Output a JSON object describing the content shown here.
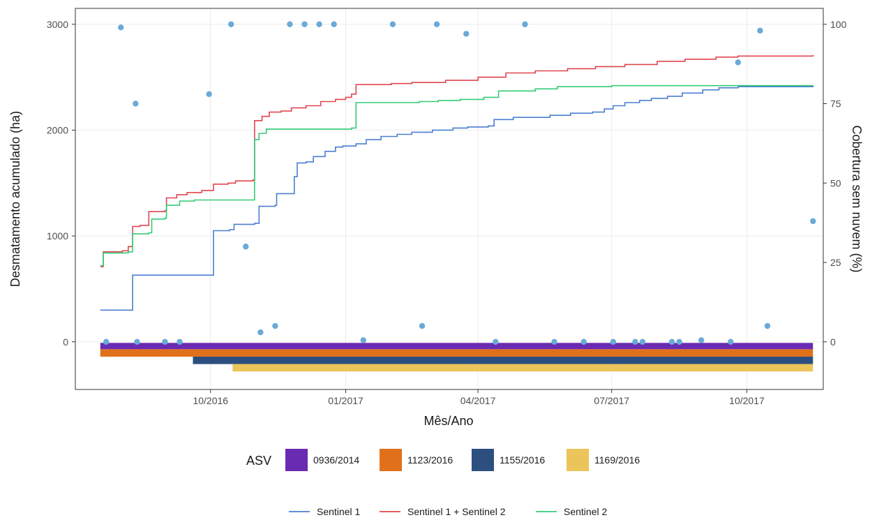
{
  "chart_data": {
    "type": "line",
    "title": "",
    "xlabel": "Mês/Ano",
    "ylabel": "Desmatamento acumulado (ha)",
    "y2label": "Cobertura sem nuvem (%)",
    "x_type": "date",
    "xlim": [
      "2016-07-01",
      "2017-11-22"
    ],
    "ylim": [
      -450,
      3150
    ],
    "y2lim": [
      -15,
      105
    ],
    "x_ticks": [
      {
        "date": "2016-10-01",
        "label": "10/2016"
      },
      {
        "date": "2017-01-01",
        "label": "01/2017"
      },
      {
        "date": "2017-04-01",
        "label": "04/2017"
      },
      {
        "date": "2017-07-01",
        "label": "07/2017"
      },
      {
        "date": "2017-10-01",
        "label": "10/2017"
      }
    ],
    "y_ticks": [
      0,
      1000,
      2000,
      3000
    ],
    "y2_ticks": [
      0,
      25,
      50,
      75,
      100
    ],
    "grid": true,
    "series": [
      {
        "name": "Sentinel 1",
        "color": "#4a7fd0",
        "points": [
          [
            "2016-07-18",
            300
          ],
          [
            "2016-08-03",
            300
          ],
          [
            "2016-08-09",
            630
          ],
          [
            "2016-09-25",
            630
          ],
          [
            "2016-10-03",
            1050
          ],
          [
            "2016-10-14",
            1060
          ],
          [
            "2016-10-17",
            1110
          ],
          [
            "2016-10-31",
            1120
          ],
          [
            "2016-11-03",
            1280
          ],
          [
            "2016-11-14",
            1290
          ],
          [
            "2016-11-15",
            1400
          ],
          [
            "2016-11-24",
            1400
          ],
          [
            "2016-11-27",
            1560
          ],
          [
            "2016-11-29",
            1690
          ],
          [
            "2016-12-05",
            1700
          ],
          [
            "2016-12-10",
            1750
          ],
          [
            "2016-12-18",
            1800
          ],
          [
            "2016-12-25",
            1840
          ],
          [
            "2016-12-30",
            1850
          ],
          [
            "2017-01-08",
            1870
          ],
          [
            "2017-01-15",
            1910
          ],
          [
            "2017-01-25",
            1940
          ],
          [
            "2017-02-05",
            1960
          ],
          [
            "2017-02-15",
            1980
          ],
          [
            "2017-03-01",
            2000
          ],
          [
            "2017-03-15",
            2020
          ],
          [
            "2017-03-25",
            2030
          ],
          [
            "2017-04-08",
            2040
          ],
          [
            "2017-04-12",
            2100
          ],
          [
            "2017-04-25",
            2120
          ],
          [
            "2017-05-20",
            2140
          ],
          [
            "2017-06-03",
            2160
          ],
          [
            "2017-06-18",
            2170
          ],
          [
            "2017-06-26",
            2200
          ],
          [
            "2017-07-02",
            2230
          ],
          [
            "2017-07-10",
            2260
          ],
          [
            "2017-07-20",
            2280
          ],
          [
            "2017-07-28",
            2300
          ],
          [
            "2017-08-08",
            2320
          ],
          [
            "2017-08-18",
            2350
          ],
          [
            "2017-09-01",
            2380
          ],
          [
            "2017-09-12",
            2400
          ],
          [
            "2017-09-25",
            2410
          ],
          [
            "2017-11-15",
            2420
          ]
        ]
      },
      {
        "name": "Sentinel 1 + Sentinel 2",
        "color": "#e0454e",
        "points": [
          [
            "2016-07-18",
            710
          ],
          [
            "2016-07-20",
            850
          ],
          [
            "2016-08-02",
            860
          ],
          [
            "2016-08-06",
            900
          ],
          [
            "2016-08-09",
            1090
          ],
          [
            "2016-08-14",
            1100
          ],
          [
            "2016-08-20",
            1230
          ],
          [
            "2016-08-31",
            1240
          ],
          [
            "2016-09-01",
            1360
          ],
          [
            "2016-09-08",
            1390
          ],
          [
            "2016-09-15",
            1410
          ],
          [
            "2016-09-25",
            1430
          ],
          [
            "2016-10-03",
            1490
          ],
          [
            "2016-10-13",
            1500
          ],
          [
            "2016-10-18",
            1520
          ],
          [
            "2016-10-30",
            1530
          ],
          [
            "2016-10-31",
            2090
          ],
          [
            "2016-11-05",
            2130
          ],
          [
            "2016-11-10",
            2170
          ],
          [
            "2016-11-18",
            2180
          ],
          [
            "2016-11-25",
            2210
          ],
          [
            "2016-12-05",
            2230
          ],
          [
            "2016-12-15",
            2270
          ],
          [
            "2016-12-25",
            2290
          ],
          [
            "2017-01-01",
            2310
          ],
          [
            "2017-01-05",
            2340
          ],
          [
            "2017-01-08",
            2430
          ],
          [
            "2017-02-01",
            2440
          ],
          [
            "2017-02-15",
            2450
          ],
          [
            "2017-03-10",
            2470
          ],
          [
            "2017-04-01",
            2500
          ],
          [
            "2017-04-20",
            2540
          ],
          [
            "2017-05-10",
            2560
          ],
          [
            "2017-06-01",
            2580
          ],
          [
            "2017-06-20",
            2600
          ],
          [
            "2017-07-10",
            2620
          ],
          [
            "2017-08-01",
            2650
          ],
          [
            "2017-08-20",
            2670
          ],
          [
            "2017-09-10",
            2690
          ],
          [
            "2017-09-25",
            2700
          ],
          [
            "2017-11-15",
            2710
          ]
        ]
      },
      {
        "name": "Sentinel 2",
        "color": "#33cc77",
        "points": [
          [
            "2016-07-18",
            720
          ],
          [
            "2016-07-20",
            840
          ],
          [
            "2016-08-06",
            850
          ],
          [
            "2016-08-09",
            1020
          ],
          [
            "2016-08-20",
            1030
          ],
          [
            "2016-08-22",
            1160
          ],
          [
            "2016-08-31",
            1170
          ],
          [
            "2016-09-01",
            1290
          ],
          [
            "2016-09-10",
            1330
          ],
          [
            "2016-09-20",
            1340
          ],
          [
            "2016-10-30",
            1340
          ],
          [
            "2016-10-31",
            1910
          ],
          [
            "2016-11-03",
            1970
          ],
          [
            "2016-11-08",
            2010
          ],
          [
            "2017-01-05",
            2020
          ],
          [
            "2017-01-08",
            2260
          ],
          [
            "2017-02-20",
            2270
          ],
          [
            "2017-03-05",
            2280
          ],
          [
            "2017-03-20",
            2290
          ],
          [
            "2017-04-05",
            2310
          ],
          [
            "2017-04-15",
            2370
          ],
          [
            "2017-05-10",
            2390
          ],
          [
            "2017-05-25",
            2410
          ],
          [
            "2017-07-01",
            2420
          ],
          [
            "2017-11-15",
            2420
          ]
        ]
      }
    ],
    "cloud_free_points": {
      "name": "Cobertura sem nuvem (%)",
      "axis": "y2",
      "color": "#6aaad8",
      "points": [
        [
          "2016-07-22",
          0
        ],
        [
          "2016-08-01",
          99
        ],
        [
          "2016-08-11",
          75
        ],
        [
          "2016-08-12",
          0
        ],
        [
          "2016-08-31",
          0
        ],
        [
          "2016-09-10",
          0
        ],
        [
          "2016-09-30",
          78
        ],
        [
          "2016-10-15",
          100
        ],
        [
          "2016-10-25",
          30
        ],
        [
          "2016-11-04",
          3
        ],
        [
          "2016-11-14",
          5
        ],
        [
          "2016-11-24",
          100
        ],
        [
          "2016-12-04",
          100
        ],
        [
          "2016-12-14",
          100
        ],
        [
          "2016-12-24",
          100
        ],
        [
          "2017-01-13",
          0.5
        ],
        [
          "2017-02-02",
          100
        ],
        [
          "2017-02-22",
          5
        ],
        [
          "2017-03-04",
          100
        ],
        [
          "2017-03-24",
          97
        ],
        [
          "2017-04-13",
          0
        ],
        [
          "2017-05-03",
          100
        ],
        [
          "2017-05-23",
          0
        ],
        [
          "2017-06-12",
          0
        ],
        [
          "2017-07-02",
          0
        ],
        [
          "2017-07-17",
          0
        ],
        [
          "2017-07-22",
          0
        ],
        [
          "2017-08-11",
          0
        ],
        [
          "2017-08-16",
          0
        ],
        [
          "2017-08-31",
          0.5
        ],
        [
          "2017-09-20",
          0
        ],
        [
          "2017-09-25",
          88
        ],
        [
          "2017-10-10",
          98
        ],
        [
          "2017-10-15",
          5
        ],
        [
          "2017-11-15",
          38
        ]
      ]
    },
    "asv_bars": [
      {
        "name": "0936/2014",
        "color": "#6a2bb3",
        "start": "2016-07-18",
        "end": "2017-11-15",
        "value_range": [
          -70,
          -10
        ]
      },
      {
        "name": "1123/2016",
        "color": "#e0701a",
        "start": "2016-07-18",
        "end": "2017-11-15",
        "value_range": [
          -140,
          -70
        ]
      },
      {
        "name": "1155/2016",
        "color": "#2c4f80",
        "start": "2016-09-19",
        "end": "2017-11-15",
        "value_range": [
          -210,
          -140
        ]
      },
      {
        "name": "1169/2016",
        "color": "#ebc45a",
        "start": "2016-10-16",
        "end": "2017-11-15",
        "value_range": [
          -280,
          -210
        ]
      }
    ],
    "legend": {
      "asv_title": "ASV",
      "asv_position": "bottom",
      "series_position": "bottom"
    }
  }
}
